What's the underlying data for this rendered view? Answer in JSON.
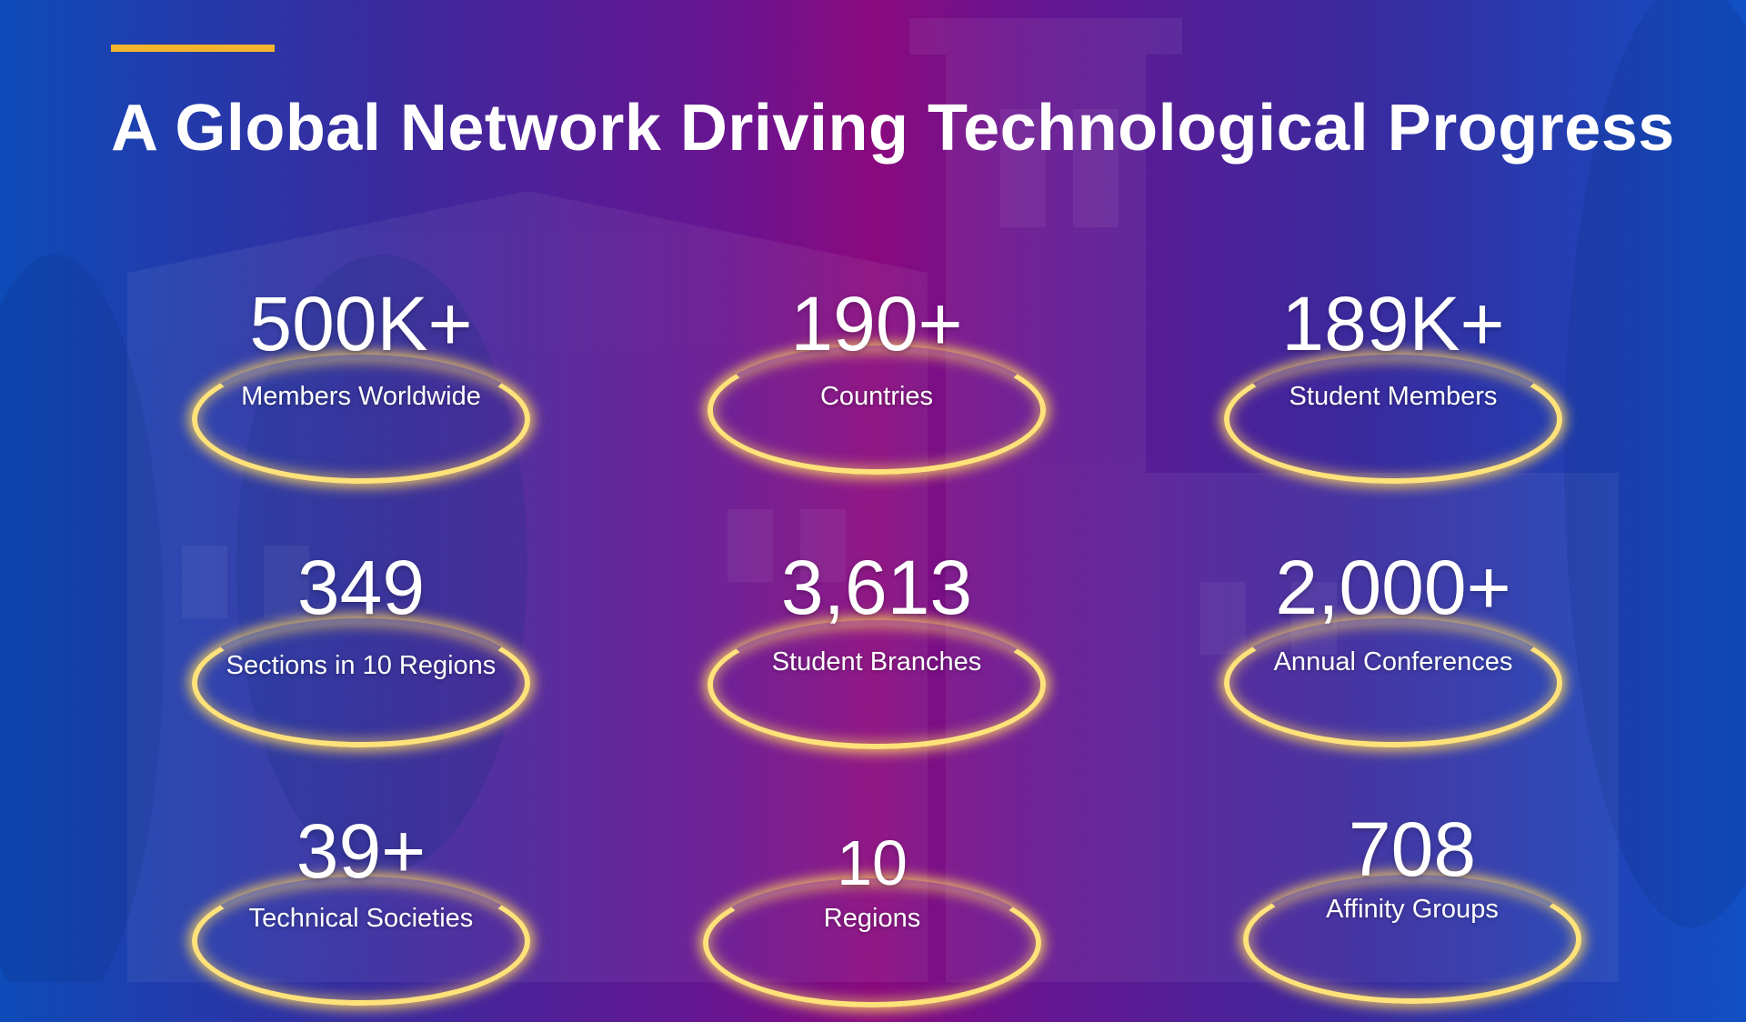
{
  "title": "A Global Network Driving Technological Progress",
  "colors": {
    "accent": "#f4b52c",
    "ring": "#ffe27a",
    "text": "#ffffff"
  },
  "stats": [
    {
      "value": "500K+",
      "label": "Members Worldwide"
    },
    {
      "value": "190+",
      "label": "Countries"
    },
    {
      "value": "189K+",
      "label": "Student Members"
    },
    {
      "value": "349",
      "label": "Sections in 10 Regions"
    },
    {
      "value": "3,613",
      "label": "Student Branches"
    },
    {
      "value": "2,000+",
      "label": "Annual Conferences"
    },
    {
      "value": "39+",
      "label": "Technical Societies"
    },
    {
      "value": "10",
      "label": "Regions"
    },
    {
      "value": "708",
      "label": "Affinity Groups"
    }
  ]
}
